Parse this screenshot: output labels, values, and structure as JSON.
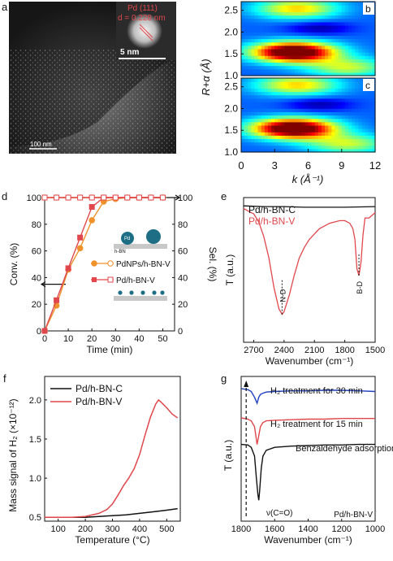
{
  "panel_letters": {
    "a": "a",
    "b": "b",
    "c": "c",
    "d": "d",
    "e": "e",
    "f": "f",
    "g": "g"
  },
  "panel_a": {
    "inset_lattice_label": "Pd (111)",
    "inset_d_label": "d = 0.228 nm",
    "inset_scale_label": "5 nm",
    "main_scale_label": "100 nm"
  },
  "colors": {
    "orange": "#f0922b",
    "red": "#e0474c",
    "black": "#111111",
    "blue": "#1f3fbf",
    "teal": "#1e6f86"
  },
  "chart_data": [
    {
      "panel": "b/c",
      "type": "heatmap",
      "xlabel": "k (Å⁻¹)",
      "ylabel": "R+α (Å)",
      "xlim": [
        0,
        12
      ],
      "ylim": [
        1.0,
        2.7
      ],
      "xticks": [
        "0",
        "3",
        "6",
        "9",
        "12"
      ],
      "yticks_b": [
        "1.0",
        "1.5",
        "2.0",
        "2.5"
      ],
      "yticks_c": [
        "1.0",
        "1.5",
        "2.0",
        "2.5"
      ],
      "colormap": "jet",
      "subpanels": [
        "b",
        "c"
      ],
      "peaks_b": [
        {
          "k": 4.7,
          "r": 1.55,
          "amp": 1.0
        },
        {
          "k": 5.0,
          "r": 2.55,
          "amp": 0.45
        },
        {
          "k": 9.5,
          "r": 1.2,
          "amp": 0.35
        }
      ],
      "peaks_c": [
        {
          "k": 4.7,
          "r": 1.55,
          "amp": 1.0
        },
        {
          "k": 5.0,
          "r": 2.55,
          "amp": 0.45
        },
        {
          "k": 9.5,
          "r": 1.2,
          "amp": 0.35
        }
      ]
    },
    {
      "panel": "d",
      "type": "line",
      "xlabel": "Time (min)",
      "ylabel_left": "Conv. (%)",
      "ylabel_right": "Sel. (%)",
      "xlim": [
        0,
        55
      ],
      "ylim": [
        0,
        100
      ],
      "xticks": [
        "0",
        "10",
        "20",
        "30",
        "40",
        "50"
      ],
      "yticks": [
        "0",
        "20",
        "40",
        "60",
        "80",
        "100"
      ],
      "legend": [
        "PdNPs/h-BN-V",
        "Pd/h-BN-V"
      ],
      "inset_labels": {
        "pd": "Pd",
        "support": "h-BN"
      },
      "x": [
        0,
        5,
        10,
        15,
        20,
        25,
        30,
        35,
        40,
        45,
        50
      ],
      "series": [
        {
          "name": "PdNPs/h-BN-V",
          "role": "conversion",
          "marker": "circle-filled",
          "color": "orange",
          "values": [
            0,
            19,
            46,
            62,
            83,
            97,
            99,
            100,
            100,
            100,
            100
          ]
        },
        {
          "name": "PdNPs/h-BN-V",
          "role": "selectivity",
          "marker": "circle-open",
          "color": "orange",
          "values": [
            100,
            100,
            100,
            100,
            100,
            100,
            100,
            100,
            100,
            100,
            100
          ]
        },
        {
          "name": "Pd/h-BN-V",
          "role": "conversion",
          "marker": "square-filled",
          "color": "red",
          "values": [
            0,
            23,
            47,
            70,
            93,
            100,
            100,
            100,
            100,
            100,
            100
          ]
        },
        {
          "name": "Pd/h-BN-V",
          "role": "selectivity",
          "marker": "square-open",
          "color": "red",
          "values": [
            100,
            100,
            100,
            100,
            100,
            100,
            100,
            100,
            100,
            100,
            100
          ]
        }
      ]
    },
    {
      "panel": "e",
      "type": "line",
      "xlabel": "Wavenumber (cm⁻¹)",
      "ylabel": "T (a.u.)",
      "xlim": [
        2800,
        1500
      ],
      "xticks": [
        "2700",
        "2400",
        "2100",
        "1800",
        "1500"
      ],
      "annotations": [
        "N-D",
        "B-D"
      ],
      "series": [
        {
          "name": "Pd/h-BN-C",
          "color": "black",
          "x": [
            2800,
            2600,
            2400,
            2200,
            2000,
            1800,
            1500
          ],
          "values": [
            0.97,
            0.965,
            0.965,
            0.96,
            0.96,
            0.96,
            0.965
          ]
        },
        {
          "name": "Pd/h-BN-V",
          "color": "red",
          "x": [
            2800,
            2750,
            2700,
            2650,
            2600,
            2550,
            2500,
            2450,
            2420,
            2400,
            2350,
            2300,
            2250,
            2200,
            2150,
            2100,
            2050,
            2000,
            1950,
            1900,
            1850,
            1800,
            1750,
            1720,
            1700,
            1680,
            1660,
            1640,
            1620,
            1600,
            1560,
            1530,
            1500
          ],
          "values": [
            0.95,
            0.93,
            0.91,
            0.85,
            0.74,
            0.58,
            0.36,
            0.2,
            0.16,
            0.18,
            0.3,
            0.45,
            0.58,
            0.66,
            0.72,
            0.76,
            0.8,
            0.82,
            0.84,
            0.85,
            0.86,
            0.86,
            0.84,
            0.8,
            0.72,
            0.5,
            0.45,
            0.55,
            0.75,
            0.88,
            0.88,
            0.9,
            0.92
          ]
        }
      ]
    },
    {
      "panel": "f",
      "type": "line",
      "xlabel": "Temperature (°C)",
      "ylabel": "Mass signal of H₂ (×10⁻¹²)",
      "xlim": [
        50,
        550
      ],
      "ylim": [
        0.45,
        2.3
      ],
      "xticks": [
        "100",
        "200",
        "300",
        "400",
        "500"
      ],
      "yticks": [
        "0.5",
        "1.0",
        "1.5",
        "2.0"
      ],
      "series": [
        {
          "name": "Pd/h-BN-C",
          "color": "black",
          "x": [
            50,
            100,
            150,
            200,
            250,
            300,
            350,
            400,
            450,
            500,
            540
          ],
          "values": [
            0.5,
            0.5,
            0.5,
            0.5,
            0.51,
            0.52,
            0.53,
            0.55,
            0.57,
            0.59,
            0.61
          ]
        },
        {
          "name": "Pd/h-BN-V",
          "color": "red",
          "x": [
            50,
            100,
            150,
            200,
            250,
            280,
            300,
            320,
            340,
            360,
            380,
            400,
            420,
            440,
            460,
            470,
            480,
            500,
            520,
            540
          ],
          "values": [
            0.5,
            0.5,
            0.5,
            0.51,
            0.55,
            0.6,
            0.67,
            0.78,
            0.9,
            1.0,
            1.12,
            1.3,
            1.55,
            1.78,
            1.95,
            2.0,
            1.97,
            1.9,
            1.82,
            1.77
          ]
        }
      ]
    },
    {
      "panel": "g",
      "type": "line",
      "xlabel": "Wavenumber (cm⁻¹)",
      "ylabel": "T (a.u.)",
      "xlim": [
        1800,
        1000
      ],
      "xticks": [
        "1800",
        "1600",
        "1400",
        "1200",
        "1000"
      ],
      "annotation": "ν(C=O)",
      "sample_label": "Pd/h-BN-V",
      "series": [
        {
          "name": "H₂ treatment for 30 min",
          "color": "blue",
          "x": [
            1800,
            1760,
            1740,
            1720,
            1705,
            1695,
            1685,
            1670,
            1650,
            1600,
            1500,
            1400,
            1300,
            1200,
            1100,
            1000
          ],
          "values": [
            2.2,
            2.18,
            2.15,
            2.05,
            1.95,
            2.05,
            2.1,
            2.12,
            2.14,
            2.15,
            2.16,
            2.16,
            2.17,
            2.17,
            2.16,
            2.15
          ]
        },
        {
          "name": "H₂ treatment for 15 min",
          "color": "red",
          "x": [
            1800,
            1760,
            1740,
            1720,
            1705,
            1695,
            1685,
            1670,
            1650,
            1600,
            1500,
            1400,
            1300,
            1200,
            1100,
            1000
          ],
          "values": [
            1.7,
            1.68,
            1.65,
            1.55,
            1.25,
            1.4,
            1.55,
            1.62,
            1.65,
            1.66,
            1.67,
            1.68,
            1.68,
            1.69,
            1.69,
            1.69
          ]
        },
        {
          "name": "Benzaldehyde adsorption",
          "color": "black",
          "x": [
            1800,
            1760,
            1740,
            1720,
            1710,
            1700,
            1695,
            1690,
            1680,
            1670,
            1650,
            1600,
            1500,
            1400,
            1300,
            1200,
            1100,
            1000
          ],
          "values": [
            1.25,
            1.24,
            1.2,
            1.05,
            0.7,
            0.4,
            0.3,
            0.45,
            0.85,
            1.05,
            1.15,
            1.2,
            1.22,
            1.23,
            1.24,
            1.24,
            1.25,
            1.25
          ]
        }
      ]
    }
  ]
}
